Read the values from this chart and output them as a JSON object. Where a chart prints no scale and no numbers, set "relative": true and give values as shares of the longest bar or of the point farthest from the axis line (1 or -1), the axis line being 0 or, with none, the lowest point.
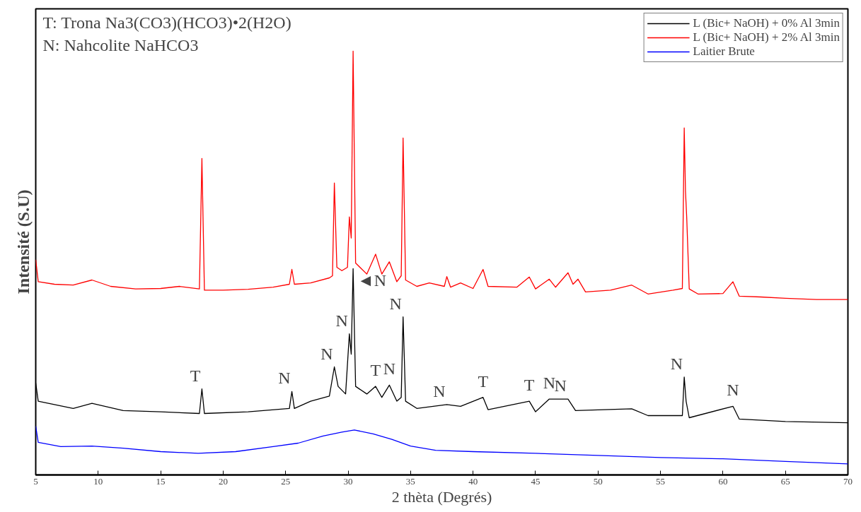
{
  "chart_data": {
    "type": "line",
    "relative": true,
    "xlabel": "2 thèta (Degrés)",
    "ylabel": "Intensité (S.U)",
    "xlim": [
      5,
      70
    ],
    "xticks": [
      5,
      10,
      15,
      20,
      25,
      30,
      35,
      40,
      45,
      50,
      55,
      60,
      65,
      70
    ],
    "legend": "top right",
    "grid": false,
    "tick_labels": "x",
    "annotations": [
      "T: Trona Na3(CO3)(HCO3)•2(H2O)",
      "N: Nahcolite NaHCO3",
      {
        "text": "T",
        "x": 18.3,
        "y": 0.203
      },
      {
        "text": "N",
        "x": 25.5,
        "y": 0.197
      },
      {
        "text": "N",
        "x": 28.9,
        "y": 0.255
      },
      {
        "text": "N",
        "x": 30.1,
        "y": 0.333
      },
      {
        "text": "◄N",
        "x": 30.4,
        "y": 0.487
      },
      {
        "text": "N",
        "x": 34.4,
        "y": 0.373
      },
      {
        "text": "T",
        "x": 32.2,
        "y": 0.209
      },
      {
        "text": "N",
        "x": 33.3,
        "y": 0.212
      },
      {
        "text": "N",
        "x": 37.9,
        "y": 0.166
      },
      {
        "text": "T",
        "x": 40.8,
        "y": 0.183
      },
      {
        "text": "T",
        "x": 44.5,
        "y": 0.174
      },
      {
        "text": "N",
        "x": 46.1,
        "y": 0.179
      },
      {
        "text": "N",
        "x": 47.6,
        "y": 0.179
      },
      {
        "text": "N",
        "x": 56.9,
        "y": 0.231
      },
      {
        "text": "N",
        "x": 60.8,
        "y": 0.162
      }
    ],
    "series": [
      {
        "name": "L (Bic+ NaOH) + 0% Al 3min",
        "color": "#000000",
        "x": [
          5.0,
          5.2,
          8,
          9.5,
          12,
          15,
          18.1,
          18.3,
          18.5,
          22,
          25.3,
          25.5,
          25.7,
          27,
          28.5,
          28.9,
          29.2,
          29.8,
          30.1,
          30.25,
          30.4,
          30.6,
          31.5,
          32.2,
          32.7,
          33.3,
          33.9,
          34.25,
          34.4,
          34.6,
          35.5,
          37.9,
          39,
          40.8,
          41.2,
          44.5,
          45,
          46.1,
          47.6,
          48.2,
          52.7,
          54,
          56.75,
          56.9,
          57.05,
          57.3,
          60.8,
          61.3,
          65,
          70
        ],
        "values": [
          0.217,
          0.174,
          0.157,
          0.169,
          0.152,
          0.149,
          0.145,
          0.203,
          0.145,
          0.149,
          0.157,
          0.197,
          0.157,
          0.174,
          0.186,
          0.255,
          0.209,
          0.191,
          0.333,
          0.285,
          0.487,
          0.209,
          0.191,
          0.209,
          0.183,
          0.212,
          0.174,
          0.183,
          0.373,
          0.174,
          0.157,
          0.166,
          0.162,
          0.183,
          0.154,
          0.174,
          0.149,
          0.179,
          0.179,
          0.152,
          0.156,
          0.14,
          0.14,
          0.231,
          0.174,
          0.135,
          0.162,
          0.132,
          0.126,
          0.123
        ]
      },
      {
        "name": "L (Bic+ NaOH) + 2% Al 3min",
        "color": "#ff0000",
        "x": [
          5.0,
          5.2,
          6.5,
          8,
          9.5,
          11,
          13,
          15,
          16.5,
          18.1,
          18.3,
          18.5,
          20,
          22,
          24,
          25.3,
          25.5,
          25.7,
          27,
          28.5,
          28.75,
          28.9,
          29.1,
          29.5,
          29.95,
          30.1,
          30.25,
          30.4,
          30.6,
          31.5,
          32.2,
          32.7,
          33.3,
          33.9,
          34.25,
          34.4,
          34.6,
          35.5,
          36.5,
          37.7,
          37.9,
          38.2,
          39,
          40,
          40.8,
          41.2,
          43.5,
          44.5,
          45,
          46.1,
          46.6,
          47.6,
          48,
          48.4,
          49,
          51,
          52.7,
          54,
          56,
          56.75,
          56.9,
          57.0,
          57.1,
          57.3,
          58,
          60,
          60.8,
          61.3,
          63,
          65,
          67.5,
          70
        ],
        "values": [
          0.508,
          0.456,
          0.45,
          0.448,
          0.46,
          0.445,
          0.439,
          0.44,
          0.445,
          0.439,
          0.747,
          0.436,
          0.436,
          0.438,
          0.443,
          0.45,
          0.485,
          0.45,
          0.453,
          0.465,
          0.47,
          0.689,
          0.49,
          0.482,
          0.49,
          0.609,
          0.559,
          1.0,
          0.5,
          0.474,
          0.521,
          0.474,
          0.503,
          0.456,
          0.47,
          0.795,
          0.46,
          0.445,
          0.453,
          0.445,
          0.468,
          0.443,
          0.453,
          0.44,
          0.485,
          0.445,
          0.443,
          0.467,
          0.439,
          0.462,
          0.443,
          0.477,
          0.45,
          0.462,
          0.432,
          0.436,
          0.448,
          0.427,
          0.436,
          0.44,
          0.819,
          0.67,
          0.607,
          0.439,
          0.427,
          0.428,
          0.456,
          0.422,
          0.42,
          0.417,
          0.414,
          0.414
        ]
      },
      {
        "name": "Laitier Brute",
        "color": "#0000ff",
        "x": [
          5.0,
          5.2,
          7,
          9.5,
          12,
          15,
          18,
          21,
          24,
          26,
          28,
          29.5,
          30.5,
          32,
          33.5,
          35,
          37,
          40,
          45,
          50,
          55,
          60,
          65,
          70
        ],
        "values": [
          0.115,
          0.077,
          0.067,
          0.068,
          0.063,
          0.055,
          0.051,
          0.055,
          0.067,
          0.075,
          0.092,
          0.101,
          0.106,
          0.097,
          0.084,
          0.068,
          0.058,
          0.055,
          0.051,
          0.046,
          0.041,
          0.038,
          0.032,
          0.026
        ]
      }
    ]
  }
}
